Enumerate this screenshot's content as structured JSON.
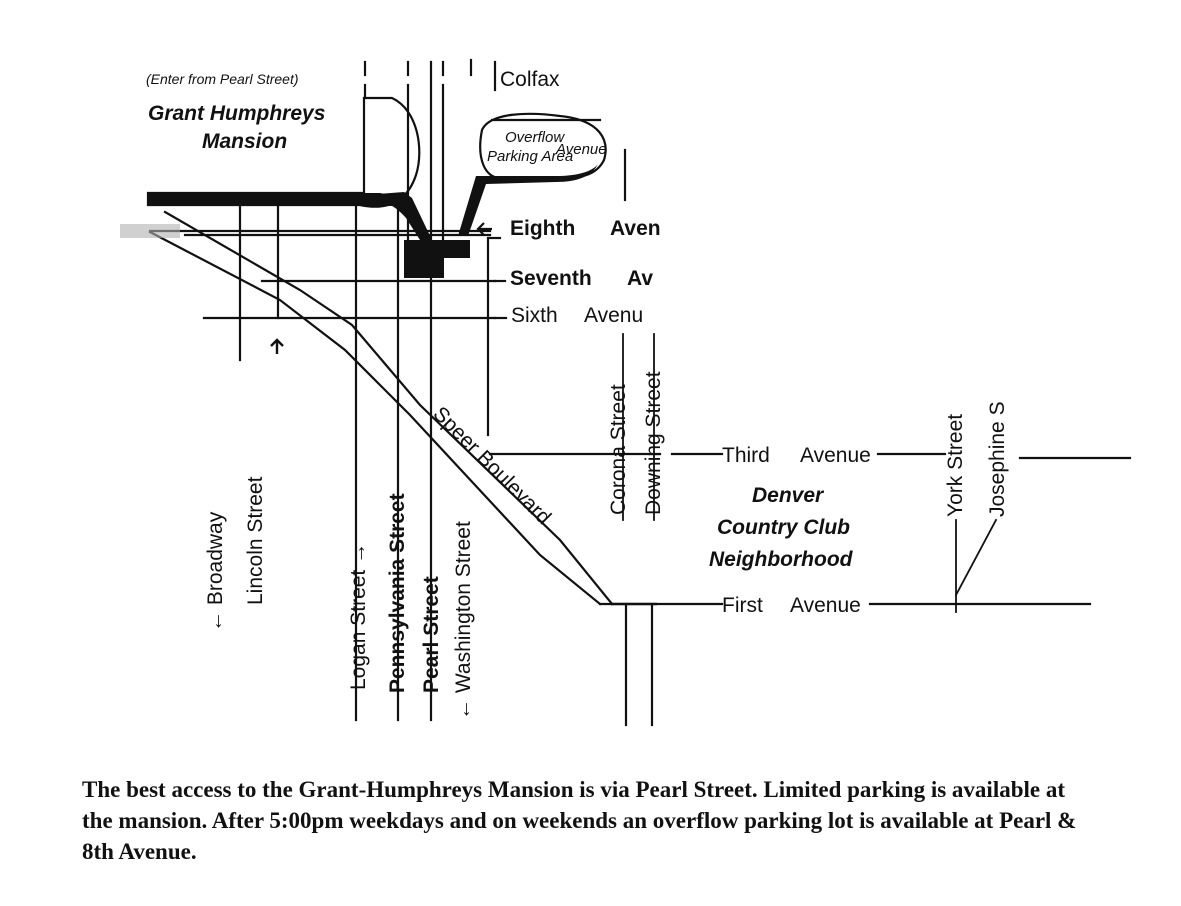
{
  "mansion": {
    "note": "(Enter from Pearl Street)",
    "name_line1": "Grant Humphreys",
    "name_line2": "Mansion"
  },
  "overflow": {
    "line1": "Overflow",
    "line2": "Parking Area"
  },
  "neighborhood": {
    "line1": "Denver",
    "line2": "Country Club",
    "line3": "Neighborhood"
  },
  "streets": {
    "colfax": "Colfax",
    "colfax_avenue": "Avenue",
    "eighth": "Eighth",
    "eighth_aven": "Aven",
    "seventh": "Seventh",
    "seventh_av": "Av",
    "sixth": "Sixth",
    "sixth_avenu": "Avenu",
    "third": "Third",
    "third_avenue": "Avenue",
    "first": "First",
    "first_avenue": "Avenue",
    "speer": "Speer Boulevard",
    "broadway": "Broadway",
    "lincoln": "Lincoln Street",
    "logan": "Logan Street",
    "pennsylvania": "Pennsylvania Street",
    "pearl": "Pearl Street",
    "washington": "Washington Street",
    "corona": "Corona Street",
    "downing": "Downing Street",
    "york": "York Street",
    "josephine": "Josephine S"
  },
  "caption": "The best access to the Grant-Humphreys Mansion is via Pearl Street.  Limited parking is available at the mansion.  After 5:00pm weekdays and on weekends an overflow parking lot is available at Pearl & 8th Avenue."
}
